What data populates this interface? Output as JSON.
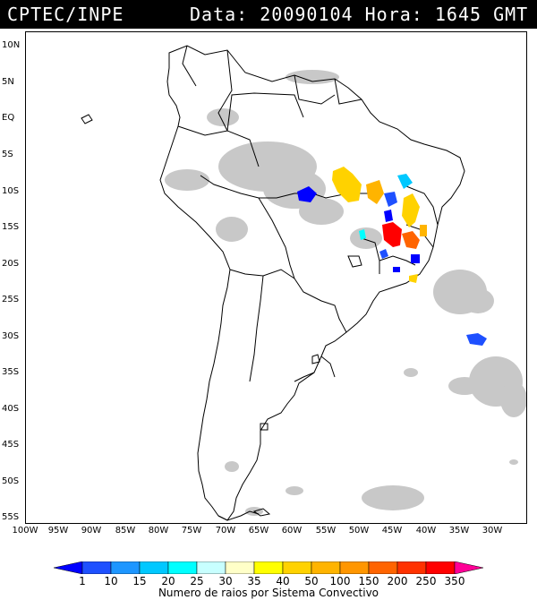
{
  "header": {
    "source": "CPTEC/INPE",
    "datetime": "Data: 20090104 Hora: 1645 GMT"
  },
  "map": {
    "lat_labels": [
      "10N",
      "5N",
      "EQ",
      "5S",
      "10S",
      "15S",
      "20S",
      "25S",
      "30S",
      "35S",
      "40S",
      "45S",
      "50S",
      "55S"
    ],
    "lon_labels": [
      "100W",
      "95W",
      "90W",
      "85W",
      "80W",
      "75W",
      "70W",
      "65W",
      "60W",
      "55W",
      "50W",
      "45W",
      "40W",
      "35W",
      "30W"
    ],
    "cloud_color": "#c8c8c8",
    "land_outline_color": "#000000"
  },
  "legend": {
    "values": [
      "1",
      "10",
      "15",
      "20",
      "25",
      "30",
      "35",
      "40",
      "50",
      "100",
      "150",
      "200",
      "250",
      "350"
    ],
    "colors": [
      "#0000ff",
      "#1e50ff",
      "#1e96ff",
      "#00c8ff",
      "#00ffff",
      "#c8ffff",
      "#ffffc8",
      "#ffff00",
      "#ffd200",
      "#ffb400",
      "#ff9600",
      "#ff6400",
      "#ff3200",
      "#ff0000",
      "#ff0096"
    ],
    "title": "Numero de raios por Sistema Convectivo"
  }
}
